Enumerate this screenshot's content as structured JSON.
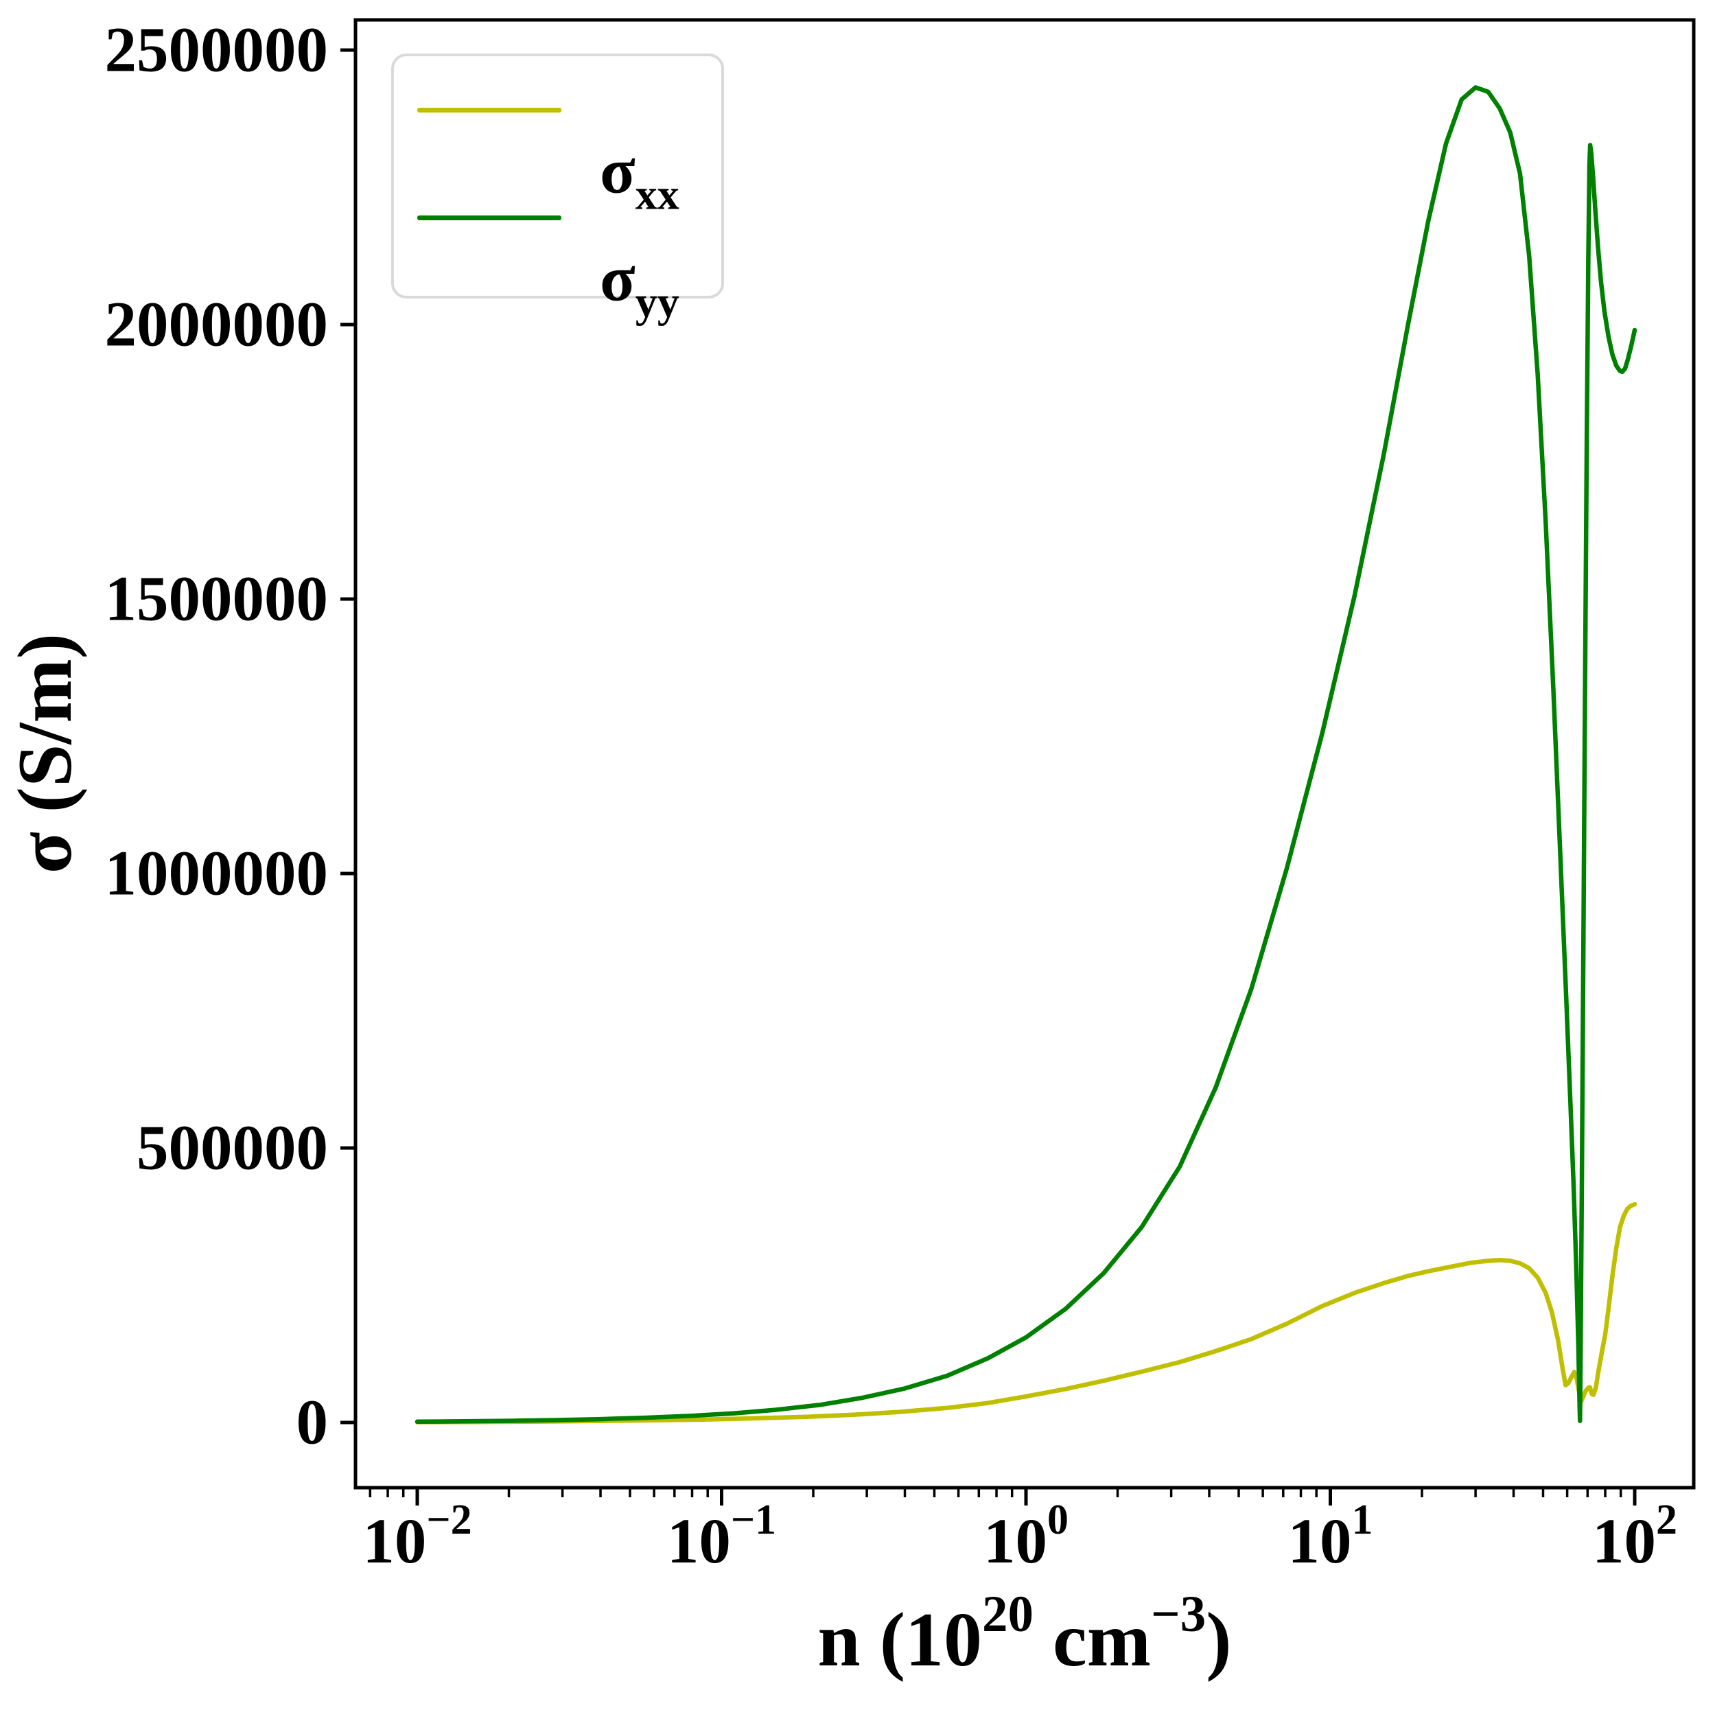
{
  "figure": {
    "background": "#ffffff"
  },
  "ylabel": {
    "text": "σ (S/m)"
  },
  "xlabel": {
    "prefix": "n (10",
    "sup1": "20",
    "mid": " cm",
    "sup2": "−3",
    "suffix": ")"
  },
  "legend": {
    "entries": [
      {
        "key": "sigma-xx",
        "main": "σ",
        "sub": "xx",
        "color": "#bfbf00"
      },
      {
        "key": "sigma-yy",
        "main": "σ",
        "sub": "yy",
        "color": "#008000"
      }
    ]
  },
  "chart_data": {
    "type": "line",
    "title": "",
    "xlabel": "n (10^20 cm^-3)",
    "ylabel": "σ (S/m)",
    "grid": false,
    "legend_position": "upper left",
    "x_axis": {
      "scale": "log",
      "tick_base": "10",
      "tick_exponents": [
        "−2",
        "−1",
        "0",
        "1",
        "2"
      ],
      "tick_exponent_values": [
        -2,
        -1,
        0,
        1,
        2
      ],
      "minor_subs": [
        2,
        3,
        4,
        5,
        6,
        7,
        8,
        9
      ],
      "xlim": [
        0.00627,
        156
      ]
    },
    "y_axis": {
      "tick_values": [
        0,
        500000,
        1000000,
        1500000,
        2000000,
        2500000
      ],
      "tick_labels": [
        "0",
        "500000",
        "1000000",
        "1500000",
        "2000000",
        "2500000"
      ],
      "ylim": [
        -121500,
        2551500
      ]
    },
    "series": [
      {
        "name": "σxx",
        "key": "sigma-xx",
        "color": "#bfbf00",
        "points": [
          [
            0.01,
            600
          ],
          [
            0.016,
            1000
          ],
          [
            0.025,
            1700
          ],
          [
            0.04,
            2700
          ],
          [
            0.06,
            4000
          ],
          [
            0.09,
            5500
          ],
          [
            0.13,
            7600
          ],
          [
            0.19,
            10400
          ],
          [
            0.27,
            14000
          ],
          [
            0.38,
            19000
          ],
          [
            0.55,
            26500
          ],
          [
            0.75,
            35500
          ],
          [
            1,
            47500
          ],
          [
            1.35,
            61000
          ],
          [
            1.8,
            76000
          ],
          [
            2.4,
            92500
          ],
          [
            3.2,
            110000
          ],
          [
            4.2,
            130000
          ],
          [
            5.5,
            152000
          ],
          [
            7.2,
            180000
          ],
          [
            9.4,
            212000
          ],
          [
            12,
            236000
          ],
          [
            15,
            254000
          ],
          [
            18,
            267000
          ],
          [
            21,
            275500
          ],
          [
            25,
            284000
          ],
          [
            29,
            291000
          ],
          [
            33,
            294500
          ],
          [
            36,
            296000
          ],
          [
            39,
            294500
          ],
          [
            42,
            290000
          ],
          [
            45,
            281000
          ],
          [
            48,
            264000
          ],
          [
            51,
            236000
          ],
          [
            53.5,
            200000
          ],
          [
            56,
            150000
          ],
          [
            58,
            97000
          ],
          [
            59.3,
            68000
          ],
          [
            60.5,
            71500
          ],
          [
            62,
            83000
          ],
          [
            63.3,
            92000
          ],
          [
            64.5,
            80000
          ],
          [
            65.6,
            57000
          ],
          [
            66.6,
            38000
          ],
          [
            67.6,
            46000
          ],
          [
            69,
            57500
          ],
          [
            70.5,
            63500
          ],
          [
            71.3,
            64000
          ],
          [
            72.3,
            52000
          ],
          [
            73.2,
            50500
          ],
          [
            74.5,
            63000
          ],
          [
            76,
            93000
          ],
          [
            78,
            128000
          ],
          [
            80,
            160000
          ],
          [
            82,
            207000
          ],
          [
            84.5,
            268000
          ],
          [
            87,
            318000
          ],
          [
            89.5,
            356000
          ],
          [
            92,
            376000
          ],
          [
            94.5,
            389000
          ],
          [
            97,
            394500
          ],
          [
            100,
            397500
          ]
        ]
      },
      {
        "name": "σyy",
        "key": "sigma-yy",
        "color": "#008000",
        "points": [
          [
            0.01,
            1500
          ],
          [
            0.014,
            2100
          ],
          [
            0.02,
            3000
          ],
          [
            0.028,
            4300
          ],
          [
            0.04,
            6100
          ],
          [
            0.056,
            8600
          ],
          [
            0.08,
            12200
          ],
          [
            0.11,
            16800
          ],
          [
            0.15,
            23000
          ],
          [
            0.21,
            32000
          ],
          [
            0.29,
            45000
          ],
          [
            0.4,
            62000
          ],
          [
            0.55,
            85000
          ],
          [
            0.75,
            117000
          ],
          [
            1,
            155000
          ],
          [
            1.35,
            207000
          ],
          [
            1.8,
            272000
          ],
          [
            2.4,
            356000
          ],
          [
            3.2,
            466000
          ],
          [
            4.2,
            610000
          ],
          [
            5.5,
            790000
          ],
          [
            7.2,
            1010000
          ],
          [
            9.4,
            1255000
          ],
          [
            12,
            1505000
          ],
          [
            15,
            1765000
          ],
          [
            18,
            2000000
          ],
          [
            21,
            2190000
          ],
          [
            24,
            2330000
          ],
          [
            27,
            2410000
          ],
          [
            30,
            2432000
          ],
          [
            33,
            2424000
          ],
          [
            36,
            2394000
          ],
          [
            39,
            2350000
          ],
          [
            42,
            2275000
          ],
          [
            45,
            2125000
          ],
          [
            48,
            1910000
          ],
          [
            51,
            1640000
          ],
          [
            54,
            1340000
          ],
          [
            57,
            1030000
          ],
          [
            59.5,
            780000
          ],
          [
            61.5,
            580000
          ],
          [
            63,
            430000
          ],
          [
            64.3,
            280000
          ],
          [
            65.3,
            140000
          ],
          [
            65.9,
            30000
          ],
          [
            66.1,
            3000
          ],
          [
            66.4,
            120000
          ],
          [
            67,
            420000
          ],
          [
            67.8,
            860000
          ],
          [
            68.7,
            1350000
          ],
          [
            69.6,
            1800000
          ],
          [
            70.4,
            2120000
          ],
          [
            71,
            2290000
          ],
          [
            71.4,
            2327000
          ],
          [
            72,
            2312000
          ],
          [
            73,
            2268000
          ],
          [
            74.3,
            2205000
          ],
          [
            75.8,
            2140000
          ],
          [
            77.5,
            2078000
          ],
          [
            79.5,
            2025000
          ],
          [
            82,
            1978000
          ],
          [
            84.5,
            1945000
          ],
          [
            87,
            1925000
          ],
          [
            89.5,
            1915500
          ],
          [
            91,
            1914000
          ],
          [
            93,
            1920000
          ],
          [
            95,
            1937000
          ],
          [
            97.5,
            1962000
          ],
          [
            100,
            1990000
          ]
        ]
      }
    ]
  }
}
